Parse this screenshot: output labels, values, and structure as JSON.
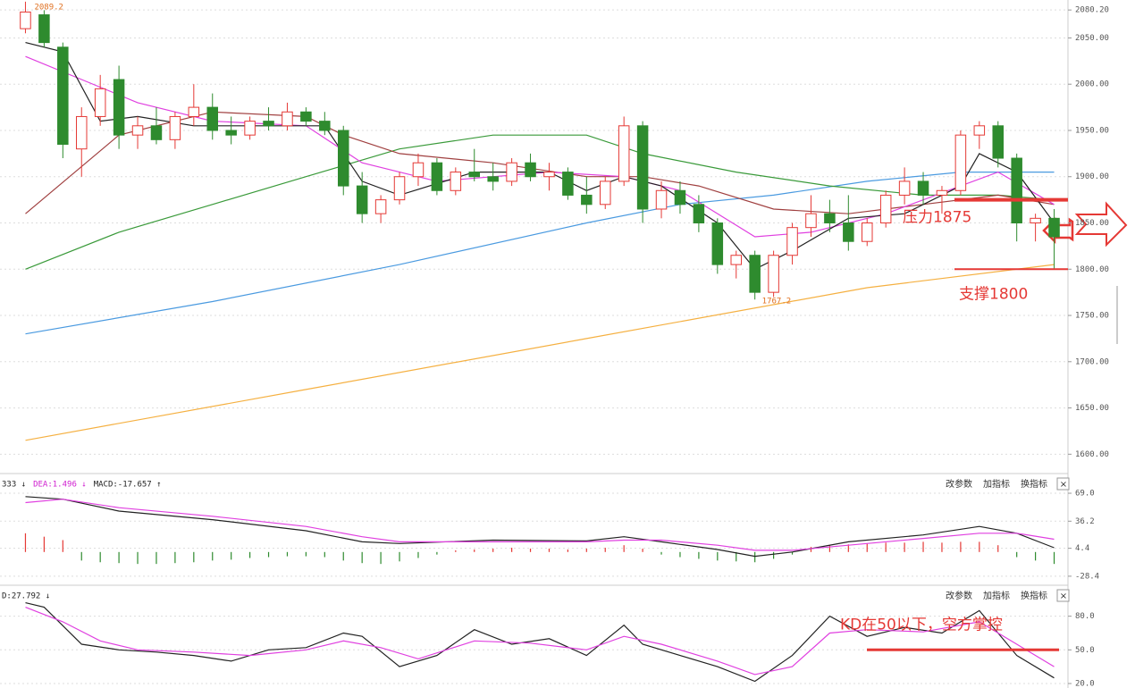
{
  "chart_data": [
    {
      "type": "candlestick",
      "open": [
        2060,
        2075,
        2040,
        1930,
        1965,
        2005,
        1945,
        1955,
        1940,
        1965,
        1975,
        1950,
        1945,
        1960,
        1955,
        1970,
        1960,
        1950,
        1890,
        1860,
        1875,
        1900,
        1915,
        1885,
        1905,
        1900,
        1895,
        1915,
        1900,
        1905,
        1880,
        1870,
        1895,
        1955,
        1865,
        1885,
        1870,
        1850,
        1805,
        1815,
        1775,
        1815,
        1845,
        1860,
        1850,
        1830,
        1850,
        1880,
        1895,
        1880,
        1885,
        1945,
        1955,
        1920,
        1850,
        1855
      ],
      "high": [
        2089.2,
        2080,
        2045,
        1975,
        2010,
        2020,
        1965,
        1975,
        1970,
        2000,
        1990,
        1965,
        1965,
        1975,
        1980,
        1975,
        1970,
        1955,
        1905,
        1880,
        1905,
        1925,
        1920,
        1910,
        1930,
        1915,
        1920,
        1925,
        1915,
        1910,
        1900,
        1900,
        1965,
        1960,
        1895,
        1895,
        1880,
        1855,
        1820,
        1820,
        1820,
        1850,
        1880,
        1875,
        1880,
        1855,
        1885,
        1910,
        1905,
        1890,
        1950,
        1960,
        1960,
        1925,
        1860,
        1865
      ],
      "low": [
        2055,
        2040,
        1920,
        1900,
        1955,
        1930,
        1930,
        1935,
        1930,
        1955,
        1940,
        1935,
        1940,
        1950,
        1950,
        1955,
        1945,
        1880,
        1850,
        1850,
        1870,
        1890,
        1880,
        1880,
        1895,
        1885,
        1890,
        1895,
        1885,
        1875,
        1860,
        1865,
        1890,
        1850,
        1855,
        1860,
        1840,
        1795,
        1790,
        1767.2,
        1770,
        1805,
        1835,
        1840,
        1820,
        1825,
        1845,
        1870,
        1870,
        1860,
        1880,
        1930,
        1910,
        1830,
        1830,
        1800
      ],
      "close": [
        2078,
        2045,
        1935,
        1965,
        1995,
        1945,
        1955,
        1940,
        1965,
        1975,
        1950,
        1945,
        1960,
        1955,
        1970,
        1960,
        1950,
        1890,
        1860,
        1875,
        1900,
        1915,
        1885,
        1905,
        1900,
        1895,
        1915,
        1900,
        1905,
        1880,
        1870,
        1895,
        1955,
        1865,
        1885,
        1870,
        1850,
        1805,
        1815,
        1775,
        1815,
        1845,
        1860,
        1850,
        1830,
        1850,
        1880,
        1895,
        1880,
        1885,
        1945,
        1955,
        1920,
        1850,
        1855,
        1835
      ],
      "up_color": "#e53935",
      "down_color": "#2e8b2e",
      "ylim": [
        1581,
        2091
      ],
      "yticks": [
        {
          "value": 2080.2,
          "label": "2080.20"
        },
        {
          "value": 2050,
          "label": "2050.00"
        },
        {
          "value": 2000,
          "label": "2000.00"
        },
        {
          "value": 1950,
          "label": "1950.00"
        },
        {
          "value": 1900,
          "label": "1900.00"
        },
        {
          "value": 1850,
          "label": "1850.00"
        },
        {
          "value": 1800,
          "label": "1800.00"
        },
        {
          "value": 1750,
          "label": "1750.00"
        },
        {
          "value": 1700,
          "label": "1700.00"
        },
        {
          "value": 1650,
          "label": "1650.00"
        },
        {
          "value": 1600,
          "label": "1600.00"
        }
      ],
      "grid": true,
      "lines": [
        {
          "color": "#f5b041",
          "x": [
            0,
            15,
            30,
            45,
            55
          ],
          "values": [
            1615,
            1670,
            1725,
            1780,
            1805
          ]
        },
        {
          "color": "#4a9ae0",
          "x": [
            0,
            10,
            20,
            30,
            35,
            40,
            45,
            50,
            55
          ],
          "values": [
            1730,
            1765,
            1805,
            1850,
            1870,
            1880,
            1895,
            1905,
            1905
          ]
        },
        {
          "color": "#3a9a3a",
          "x": [
            0,
            5,
            10,
            15,
            20,
            25,
            30,
            33,
            38,
            43,
            48,
            52,
            55
          ],
          "values": [
            1800,
            1840,
            1870,
            1900,
            1930,
            1945,
            1945,
            1925,
            1905,
            1890,
            1880,
            1880,
            1875
          ]
        },
        {
          "color": "#a04040",
          "x": [
            0,
            5,
            10,
            15,
            17,
            20,
            25,
            30,
            33,
            36,
            40,
            44,
            48,
            52,
            55
          ],
          "values": [
            1860,
            1945,
            1970,
            1965,
            1945,
            1925,
            1915,
            1900,
            1900,
            1890,
            1865,
            1860,
            1870,
            1880,
            1870
          ]
        },
        {
          "color": "#e040e0",
          "x": [
            0,
            3,
            6,
            10,
            15,
            18,
            22,
            28,
            32,
            35,
            39,
            42,
            46,
            50,
            52,
            55
          ],
          "values": [
            2030,
            2005,
            1980,
            1960,
            1955,
            1915,
            1895,
            1905,
            1900,
            1885,
            1835,
            1840,
            1860,
            1890,
            1905,
            1870
          ]
        },
        {
          "color": "#222222",
          "x": [
            0,
            2,
            4,
            6,
            9,
            13,
            16,
            18,
            20,
            24,
            28,
            30,
            32,
            34,
            37,
            39,
            41,
            44,
            47,
            50,
            51,
            53,
            55
          ],
          "values": [
            2045,
            2035,
            1960,
            1965,
            1955,
            1955,
            1955,
            1895,
            1880,
            1905,
            1905,
            1885,
            1900,
            1890,
            1850,
            1800,
            1820,
            1855,
            1860,
            1890,
            1925,
            1905,
            1850
          ]
        }
      ],
      "high_label": 2089.2,
      "low_label": 1767.2,
      "resistance": {
        "value": 1875,
        "label": "压力1875"
      },
      "support": {
        "value": 1800,
        "label": "支撑1800"
      }
    },
    {
      "type": "bar",
      "header": [
        "333 ↓",
        "DEA:1.496 ↓",
        "MACD:-17.657 ↑"
      ],
      "controls": [
        "改参数",
        "加指标",
        "换指标",
        "×"
      ],
      "values": [
        22,
        18,
        14,
        -10,
        -12,
        -13,
        -14,
        -14,
        -13,
        -12,
        -10,
        -9,
        -7,
        -6,
        -5,
        -5,
        -6,
        -10,
        -13,
        -14,
        -11,
        -7,
        -3,
        2,
        3,
        4,
        5,
        4,
        4,
        3,
        4,
        5,
        8,
        4,
        -3,
        -6,
        -8,
        -10,
        -11,
        -12,
        -8,
        -3,
        6,
        8,
        9,
        10,
        11,
        11,
        12,
        11,
        12,
        12,
        8,
        -6,
        -10,
        -14
      ],
      "up_color": "#e53935",
      "down_color": "#2e8b2e",
      "ylim": [
        -39,
        90
      ],
      "yticks": [
        {
          "value": 69,
          "label": "69.0"
        },
        36.2,
        4.4,
        -28.4
      ],
      "grid": true,
      "lines": [
        {
          "color": "#222222",
          "x": [
            0,
            2,
            5,
            10,
            15,
            18,
            20,
            25,
            30,
            32,
            34,
            37,
            39,
            41,
            44,
            48,
            51,
            53,
            55
          ],
          "values": [
            65,
            62,
            48,
            38,
            25,
            12,
            10,
            14,
            13,
            18,
            12,
            3,
            -5,
            0,
            12,
            20,
            30,
            22,
            5
          ]
        },
        {
          "color": "#e040e0",
          "x": [
            0,
            2,
            5,
            10,
            15,
            18,
            20,
            25,
            30,
            32,
            34,
            37,
            39,
            41,
            44,
            48,
            51,
            53,
            55
          ],
          "values": [
            58,
            62,
            52,
            42,
            30,
            18,
            12,
            12,
            12,
            14,
            14,
            8,
            2,
            2,
            8,
            16,
            22,
            22,
            15
          ]
        }
      ]
    },
    {
      "type": "line",
      "header": [
        "D:27.792 ↓"
      ],
      "controls": [
        "改参数",
        "加指标",
        "换指标",
        "×"
      ],
      "ylim": [
        16,
        106
      ],
      "yticks": [
        {
          "value": 80,
          "label": "80.0"
        },
        {
          "value": 50,
          "label": "50.0"
        },
        {
          "value": 20,
          "label": "20.0"
        }
      ],
      "grid": true,
      "lines": [
        {
          "color": "#222222",
          "x": [
            0,
            1,
            3,
            5,
            7,
            9,
            11,
            13,
            15,
            17,
            18,
            20,
            22,
            24,
            26,
            28,
            30,
            32,
            33,
            35,
            37,
            39,
            41,
            43,
            45,
            47,
            49,
            51,
            53,
            55
          ],
          "values": [
            92,
            88,
            55,
            50,
            48,
            45,
            40,
            50,
            52,
            65,
            62,
            35,
            45,
            68,
            55,
            60,
            45,
            72,
            55,
            45,
            35,
            22,
            45,
            80,
            62,
            70,
            65,
            85,
            45,
            25
          ]
        },
        {
          "color": "#e040e0",
          "x": [
            0,
            2,
            4,
            6,
            9,
            12,
            15,
            17,
            19,
            21,
            24,
            27,
            30,
            32,
            34,
            37,
            39,
            41,
            43,
            45,
            48,
            51,
            53,
            55
          ],
          "values": [
            88,
            75,
            58,
            50,
            48,
            45,
            50,
            58,
            52,
            42,
            58,
            56,
            50,
            62,
            55,
            40,
            28,
            35,
            65,
            68,
            66,
            75,
            55,
            35
          ]
        }
      ],
      "annotation": {
        "value": 50,
        "label": "KD在50以下，空方掌控"
      }
    }
  ]
}
